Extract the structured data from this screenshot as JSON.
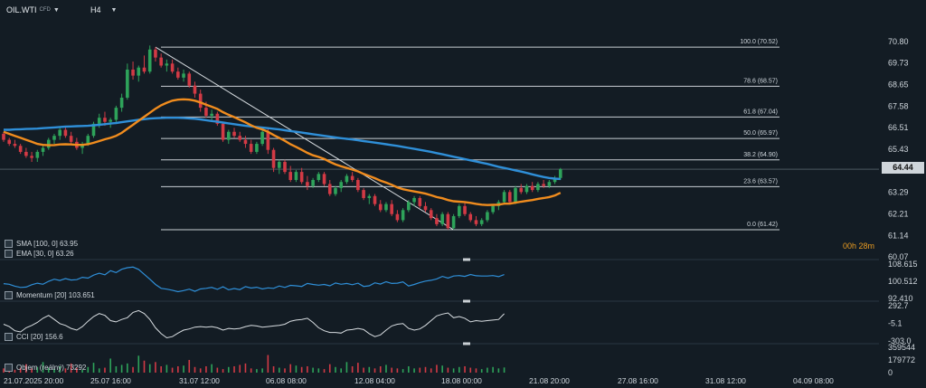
{
  "header": {
    "symbol": "OIL.WTI",
    "symbol_sub": "CFD",
    "timeframe": "H4"
  },
  "price_tag": "64.44",
  "countdown": {
    "hours": "00h",
    "minutes": "28m"
  },
  "indicators": {
    "sma_label": "SMA [100, 0] 63.95",
    "ema_label": "EMA [30, 0] 63.26",
    "momentum_label": "Momentum [20] 103.651",
    "cci_label": "CCI [20] 156.6",
    "volume_label": "Objem (reálný) 73292"
  },
  "colors": {
    "sma": "#2f8fd8",
    "ema": "#f08c1e",
    "bull": "#2ea35a",
    "bear": "#d23a45",
    "momentum": "#2f8fd8",
    "cci": "#d8dde1",
    "bg": "#131c24",
    "fib": "#c9cfd4"
  },
  "chart_data": [
    {
      "type": "candlestick",
      "title": "OIL.WTI",
      "ylim": [
        60.07,
        71.2
      ],
      "y_ticks": [
        "70.80",
        "69.73",
        "68.65",
        "67.58",
        "66.51",
        "65.43",
        "64.44",
        "63.29",
        "62.21",
        "61.14",
        "60.07"
      ],
      "x_ticks": [
        "21.07.2025 20:00",
        "25.07 16:00",
        "31.07 12:00",
        "06.08 08:00",
        "12.08 04:00",
        "18.08 00:00",
        "21.08 20:00",
        "27.08 16:00",
        "31.08 12:00",
        "04.09 08:00"
      ],
      "fibonacci": [
        {
          "label": "100.0 (70.52)",
          "value": 70.52
        },
        {
          "label": "78.6 (68.57)",
          "value": 68.57
        },
        {
          "label": "61.8 (67.04)",
          "value": 67.04
        },
        {
          "label": "50.0 (65.97)",
          "value": 65.97
        },
        {
          "label": "38.2 (64.90)",
          "value": 64.9
        },
        {
          "label": "23.6 (63.57)",
          "value": 63.57
        },
        {
          "label": "0.0 (61.42)",
          "value": 61.42
        }
      ],
      "trendline": {
        "from": 70.52,
        "to": 61.42
      },
      "candles": [
        [
          66.2,
          66.3,
          65.8,
          65.9
        ],
        [
          65.9,
          66.0,
          65.6,
          65.7
        ],
        [
          65.7,
          65.9,
          65.5,
          65.6
        ],
        [
          65.6,
          65.7,
          65.2,
          65.3
        ],
        [
          65.3,
          65.5,
          65.0,
          65.1
        ],
        [
          65.1,
          65.3,
          64.8,
          65.0
        ],
        [
          65.0,
          65.4,
          64.8,
          65.3
        ],
        [
          65.3,
          65.6,
          65.1,
          65.5
        ],
        [
          65.5,
          66.0,
          65.4,
          65.9
        ],
        [
          65.9,
          66.2,
          65.7,
          66.1
        ],
        [
          66.1,
          66.5,
          65.9,
          66.4
        ],
        [
          66.4,
          66.6,
          66.0,
          66.1
        ],
        [
          66.1,
          66.3,
          65.7,
          65.8
        ],
        [
          65.8,
          66.0,
          65.4,
          65.5
        ],
        [
          65.5,
          65.8,
          65.2,
          65.7
        ],
        [
          65.7,
          66.2,
          65.6,
          66.1
        ],
        [
          66.1,
          66.8,
          66.0,
          66.7
        ],
        [
          66.7,
          67.2,
          66.5,
          67.0
        ],
        [
          67.0,
          67.3,
          66.6,
          66.8
        ],
        [
          66.8,
          67.0,
          66.5,
          66.9
        ],
        [
          66.9,
          67.6,
          66.8,
          67.5
        ],
        [
          67.5,
          68.2,
          67.3,
          68.0
        ],
        [
          68.0,
          69.7,
          67.9,
          69.4
        ],
        [
          69.4,
          69.8,
          68.9,
          69.1
        ],
        [
          69.1,
          69.6,
          68.8,
          69.5
        ],
        [
          69.5,
          70.1,
          69.2,
          69.3
        ],
        [
          69.3,
          70.6,
          69.2,
          70.4
        ],
        [
          70.4,
          70.52,
          69.8,
          70.0
        ],
        [
          70.0,
          70.2,
          69.5,
          69.6
        ],
        [
          69.6,
          69.9,
          69.3,
          69.7
        ],
        [
          69.7,
          69.9,
          69.2,
          69.3
        ],
        [
          69.3,
          69.5,
          68.9,
          69.0
        ],
        [
          69.0,
          69.4,
          68.8,
          69.2
        ],
        [
          69.2,
          69.3,
          68.5,
          68.6
        ],
        [
          68.6,
          68.8,
          68.0,
          68.2
        ],
        [
          68.2,
          68.4,
          67.3,
          67.5
        ],
        [
          67.5,
          67.8,
          67.0,
          67.1
        ],
        [
          67.1,
          67.4,
          66.8,
          67.2
        ],
        [
          67.2,
          67.3,
          66.6,
          66.7
        ],
        [
          66.7,
          66.8,
          65.8,
          65.9
        ],
        [
          65.9,
          66.4,
          65.7,
          66.3
        ],
        [
          66.3,
          66.5,
          66.0,
          66.1
        ],
        [
          66.1,
          66.3,
          65.8,
          65.9
        ],
        [
          65.9,
          66.1,
          65.5,
          65.7
        ],
        [
          65.7,
          65.9,
          65.2,
          65.3
        ],
        [
          65.3,
          65.8,
          65.2,
          65.7
        ],
        [
          65.7,
          66.4,
          65.6,
          66.3
        ],
        [
          66.3,
          66.5,
          65.2,
          65.4
        ],
        [
          65.4,
          65.5,
          64.3,
          64.5
        ],
        [
          64.5,
          64.9,
          64.2,
          64.8
        ],
        [
          64.8,
          64.9,
          64.2,
          64.3
        ],
        [
          64.3,
          64.6,
          63.8,
          63.9
        ],
        [
          63.9,
          64.4,
          63.8,
          64.3
        ],
        [
          64.3,
          64.5,
          63.7,
          63.8
        ],
        [
          63.8,
          64.1,
          63.4,
          63.6
        ],
        [
          63.6,
          64.0,
          63.5,
          63.9
        ],
        [
          63.9,
          64.3,
          63.8,
          64.2
        ],
        [
          64.2,
          64.3,
          63.6,
          63.7
        ],
        [
          63.7,
          63.9,
          63.1,
          63.2
        ],
        [
          63.2,
          63.6,
          63.1,
          63.5
        ],
        [
          63.5,
          63.9,
          63.3,
          63.8
        ],
        [
          63.8,
          64.2,
          63.7,
          64.1
        ],
        [
          64.1,
          64.3,
          63.8,
          63.9
        ],
        [
          63.9,
          64.0,
          63.3,
          63.4
        ],
        [
          63.4,
          63.5,
          62.9,
          63.0
        ],
        [
          63.0,
          63.2,
          62.7,
          63.1
        ],
        [
          63.1,
          63.2,
          62.6,
          62.7
        ],
        [
          62.7,
          62.9,
          62.3,
          62.4
        ],
        [
          62.4,
          62.8,
          62.3,
          62.7
        ],
        [
          62.7,
          62.9,
          62.1,
          62.2
        ],
        [
          62.2,
          62.4,
          61.8,
          61.9
        ],
        [
          61.9,
          62.5,
          61.8,
          62.4
        ],
        [
          62.4,
          62.9,
          62.3,
          62.8
        ],
        [
          62.8,
          63.1,
          62.6,
          63.0
        ],
        [
          63.0,
          63.1,
          62.5,
          62.6
        ],
        [
          62.6,
          62.8,
          62.3,
          62.4
        ],
        [
          62.4,
          62.5,
          61.9,
          62.0
        ],
        [
          62.0,
          62.2,
          61.6,
          61.7
        ],
        [
          61.7,
          62.3,
          61.6,
          62.2
        ],
        [
          62.2,
          62.3,
          61.42,
          61.5
        ],
        [
          61.5,
          62.2,
          61.42,
          62.1
        ],
        [
          62.1,
          62.7,
          62.0,
          62.6
        ],
        [
          62.6,
          62.8,
          62.1,
          62.2
        ],
        [
          62.2,
          62.3,
          61.8,
          61.9
        ],
        [
          61.9,
          62.1,
          61.6,
          61.7
        ],
        [
          61.7,
          62.0,
          61.6,
          61.9
        ],
        [
          61.9,
          62.4,
          61.8,
          62.3
        ],
        [
          62.3,
          62.7,
          62.2,
          62.6
        ],
        [
          62.6,
          62.9,
          62.4,
          62.8
        ],
        [
          62.8,
          63.4,
          62.7,
          63.3
        ],
        [
          63.3,
          63.4,
          62.7,
          62.8
        ],
        [
          62.8,
          63.6,
          62.7,
          63.5
        ],
        [
          63.5,
          63.7,
          63.2,
          63.3
        ],
        [
          63.3,
          63.7,
          63.2,
          63.6
        ],
        [
          63.6,
          63.8,
          63.3,
          63.4
        ],
        [
          63.4,
          63.8,
          63.3,
          63.7
        ],
        [
          63.7,
          63.9,
          63.5,
          63.6
        ],
        [
          63.6,
          63.9,
          63.5,
          63.8
        ],
        [
          63.8,
          64.1,
          63.7,
          64.0
        ],
        [
          64.0,
          64.5,
          63.9,
          64.44
        ]
      ],
      "sma": [
        66.4,
        66.4,
        66.42,
        66.43,
        66.44,
        66.45,
        66.46,
        66.48,
        66.5,
        66.52,
        66.54,
        66.56,
        66.57,
        66.58,
        66.59,
        66.6,
        66.62,
        66.65,
        66.68,
        66.71,
        66.74,
        66.78,
        66.82,
        66.86,
        66.9,
        66.93,
        66.96,
        66.98,
        66.99,
        67.0,
        67.0,
        67.0,
        66.99,
        66.97,
        66.95,
        66.92,
        66.88,
        66.84,
        66.8,
        66.76,
        66.72,
        66.68,
        66.64,
        66.6,
        66.57,
        66.54,
        66.51,
        66.48,
        66.45,
        66.42,
        66.38,
        66.34,
        66.3,
        66.26,
        66.22,
        66.18,
        66.14,
        66.1,
        66.06,
        66.02,
        65.98,
        65.95,
        65.92,
        65.88,
        65.84,
        65.8,
        65.76,
        65.72,
        65.68,
        65.64,
        65.6,
        65.55,
        65.5,
        65.45,
        65.4,
        65.35,
        65.3,
        65.24,
        65.18,
        65.12,
        65.06,
        65.0,
        64.94,
        64.88,
        64.82,
        64.76,
        64.7,
        64.63,
        64.56,
        64.5,
        64.44,
        64.38,
        64.32,
        64.25,
        64.18,
        64.11,
        64.05,
        64.0,
        63.97,
        63.95
      ],
      "ema": [
        66.3,
        66.2,
        66.1,
        66.0,
        65.9,
        65.8,
        65.7,
        65.65,
        65.63,
        65.64,
        65.67,
        65.68,
        65.67,
        65.65,
        65.65,
        65.68,
        65.75,
        65.84,
        65.93,
        66.0,
        66.1,
        66.25,
        66.45,
        66.65,
        66.85,
        67.05,
        67.25,
        67.45,
        67.62,
        67.75,
        67.85,
        67.9,
        67.92,
        67.9,
        67.85,
        67.76,
        67.65,
        67.55,
        67.44,
        67.28,
        67.15,
        67.03,
        66.9,
        66.77,
        66.62,
        66.5,
        66.42,
        66.3,
        66.14,
        66.0,
        65.85,
        65.68,
        65.55,
        65.4,
        65.25,
        65.13,
        65.05,
        64.95,
        64.8,
        64.68,
        64.58,
        64.5,
        64.42,
        64.33,
        64.2,
        64.1,
        63.99,
        63.87,
        63.77,
        63.66,
        63.53,
        63.44,
        63.38,
        63.33,
        63.28,
        63.22,
        63.14,
        63.05,
        62.99,
        62.9,
        62.84,
        62.82,
        62.8,
        62.76,
        62.71,
        62.67,
        62.65,
        62.66,
        62.67,
        62.72,
        62.72,
        62.77,
        62.82,
        62.86,
        62.9,
        62.96,
        63.0,
        63.05,
        63.13,
        63.26
      ]
    },
    {
      "type": "line",
      "title": "Momentum [20]",
      "ylim": [
        92.41,
        108.615
      ],
      "y_ticks": [
        "108.615",
        "100.512",
        "92.410"
      ],
      "series": [
        {
          "name": "Momentum",
          "values": [
            99.4,
            99.1,
            98.2,
            97.6,
            97.8,
            98.9,
            99.6,
            99.1,
            100.5,
            101.5,
            100.9,
            101.8,
            101.1,
            101.3,
            102.4,
            102.0,
            103.4,
            104.3,
            103.6,
            105.5,
            104.6,
            106.2,
            106.9,
            107.2,
            106.1,
            103.8,
            101.5,
            99.0,
            97.2,
            96.8,
            96.3,
            95.6,
            96.1,
            96.8,
            95.8,
            96.9,
            97.2,
            97.6,
            96.7,
            97.9,
            96.5,
            97.1,
            96.6,
            98.0,
            97.3,
            97.7,
            96.9,
            97.4,
            97.2,
            98.3,
            97.6,
            98.6,
            98.4,
            98.1,
            99.5,
            99.0,
            98.7,
            99.0,
            98.4,
            99.7,
            99.1,
            99.5,
            98.9,
            99.6,
            98.1,
            98.4,
            99.8,
            99.2,
            100.3,
            99.5,
            99.6,
            100.2,
            98.3,
            99.0,
            99.9,
            100.6,
            101.0,
            101.6,
            102.8,
            102.0,
            103.0,
            103.2,
            102.8,
            103.7,
            103.1,
            103.0,
            103.0,
            103.2,
            102.7,
            103.651
          ]
        }
      ]
    },
    {
      "type": "line",
      "title": "CCI [20]",
      "ylim": [
        -303.0,
        292.7
      ],
      "y_ticks": [
        "292.7",
        "-5.1",
        "-303.0"
      ],
      "series": [
        {
          "name": "CCI",
          "values": [
            -20,
            -60,
            -130,
            -150,
            -80,
            -40,
            10,
            80,
            130,
            60,
            -10,
            -40,
            -90,
            -120,
            -60,
            30,
            110,
            160,
            130,
            40,
            20,
            60,
            90,
            180,
            210,
            160,
            60,
            -80,
            -180,
            -250,
            -230,
            -170,
            -120,
            -100,
            -70,
            -60,
            -70,
            -60,
            -80,
            -120,
            -90,
            -100,
            -90,
            -60,
            -40,
            -50,
            -70,
            -60,
            -50,
            -40,
            -20,
            30,
            50,
            60,
            80,
            10,
            -80,
            -130,
            -160,
            -160,
            -170,
            -120,
            -110,
            -90,
            -110,
            -180,
            -230,
            -200,
            -120,
            -50,
            -20,
            -10,
            -90,
            -120,
            -100,
            -40,
            40,
            120,
            150,
            170,
            90,
            110,
            80,
            20,
            40,
            30,
            40,
            50,
            60,
            156.6
          ]
        }
      ]
    },
    {
      "type": "bar",
      "title": "Objem (reálný)",
      "ylim": [
        0,
        359544
      ],
      "y_ticks": [
        "359544",
        "179772",
        "0"
      ],
      "series": [
        {
          "name": "Objem",
          "values": [
            60000,
            90000,
            40000,
            70000,
            120000,
            60000,
            80000,
            150000,
            70000,
            50000,
            90000,
            60000,
            130000,
            70000,
            40000,
            80000,
            140000,
            60000,
            70000,
            200000,
            90000,
            110000,
            130000,
            80000,
            240000,
            170000,
            120000,
            150000,
            90000,
            110000,
            70000,
            90000,
            100000,
            180000,
            80000,
            60000,
            90000,
            120000,
            70000,
            50000,
            80000,
            90000,
            110000,
            130000,
            60000,
            50000,
            60000,
            250000,
            90000,
            70000,
            60000,
            120000,
            100000,
            80000,
            90000,
            70000,
            60000,
            50000,
            120000,
            80000,
            60000,
            150000,
            90000,
            140000,
            70000,
            80000,
            60000,
            90000,
            110000,
            70000,
            60000,
            50000,
            90000,
            60000,
            70000,
            80000,
            60000,
            110000,
            100000,
            70000,
            60000,
            80000,
            90000,
            70000,
            60000,
            50000,
            70000,
            80000,
            60000,
            73292
          ]
        }
      ]
    }
  ]
}
